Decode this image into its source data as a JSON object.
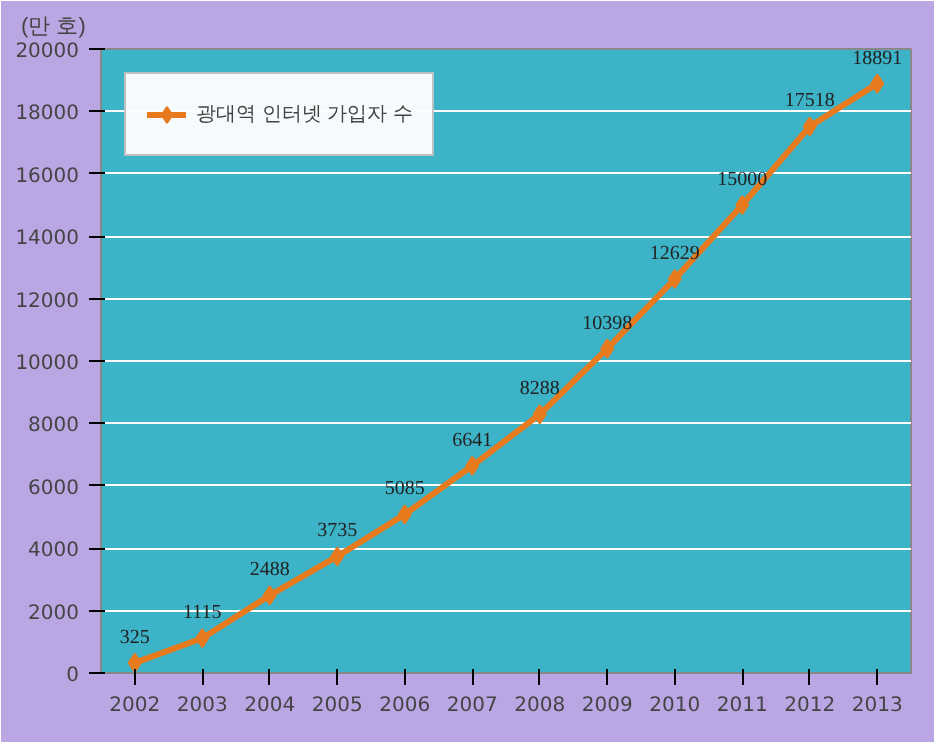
{
  "chart_data": {
    "type": "line",
    "ylabel": "(만 호)",
    "categories": [
      "2002",
      "2003",
      "2004",
      "2005",
      "2006",
      "2007",
      "2008",
      "2009",
      "2010",
      "2011",
      "2012",
      "2013"
    ],
    "series": [
      {
        "name": "광대역 인터넷 가입자 수",
        "color": "#e87a1e",
        "values": [
          325,
          1115,
          2488,
          3735,
          5085,
          6641,
          8288,
          10398,
          12629,
          15000,
          17518,
          18891
        ]
      }
    ],
    "ylim": [
      0,
      20000
    ],
    "yticks": [
      0,
      2000,
      4000,
      6000,
      8000,
      10000,
      12000,
      14000,
      16000,
      18000,
      20000
    ],
    "grid": "y",
    "legend": "top left",
    "marker": "diamond",
    "line_style": "solid",
    "data_labels": true
  }
}
